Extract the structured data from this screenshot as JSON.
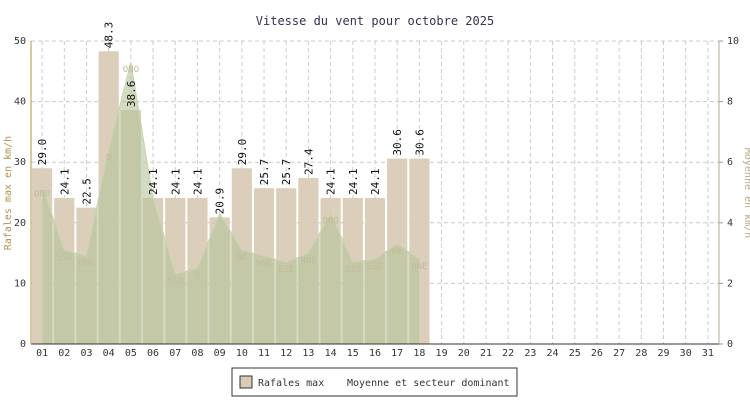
{
  "chart_data": {
    "type": "bar",
    "title": "Vitesse du vent pour octobre 2025",
    "ylabel": "Rafales max en km/h",
    "y2label": "Moyenne en km/h",
    "categories": [
      "01",
      "02",
      "03",
      "04",
      "05",
      "06",
      "07",
      "08",
      "09",
      "10",
      "11",
      "12",
      "13",
      "14",
      "15",
      "16",
      "17",
      "18",
      "19",
      "20",
      "21",
      "22",
      "23",
      "24",
      "25",
      "26",
      "27",
      "28",
      "29",
      "30",
      "31"
    ],
    "ylim": [
      0,
      50
    ],
    "yticks": [
      0,
      10,
      20,
      30,
      40,
      50
    ],
    "y2lim": [
      0,
      10
    ],
    "y2ticks": [
      0,
      2,
      4,
      6,
      8,
      10
    ],
    "grid": true,
    "series": [
      {
        "name": "Rafales max",
        "color": "#d9cbb6",
        "values": [
          29.0,
          24.1,
          22.5,
          48.3,
          38.6,
          24.1,
          24.1,
          24.1,
          20.9,
          29.0,
          25.7,
          25.7,
          27.4,
          24.1,
          24.1,
          24.1,
          30.6,
          30.6,
          null,
          null,
          null,
          null,
          null,
          null,
          null,
          null,
          null,
          null,
          null,
          null,
          null
        ],
        "value_labels": [
          "29.0",
          "24.1",
          "22.5",
          "48.3",
          "38.6",
          "24.1",
          "24.1",
          "24.1",
          "20.9",
          "29.0",
          "25.7",
          "25.7",
          "27.4",
          "24.1",
          "24.1",
          "24.1",
          "30.6",
          "30.6",
          null,
          null,
          null,
          null,
          null,
          null,
          null,
          null,
          null,
          null,
          null,
          null,
          null
        ]
      },
      {
        "name": "Moyenne et secteur dominant",
        "color": "#b5c49a",
        "axis": "y2",
        "type": "area",
        "values": [
          5.2,
          3.1,
          2.9,
          6.4,
          9.3,
          4.8,
          2.3,
          2.5,
          4.3,
          3.1,
          2.9,
          2.7,
          3.0,
          4.3,
          2.7,
          2.8,
          3.3,
          2.8,
          null,
          null,
          null,
          null,
          null,
          null,
          null,
          null,
          null,
          null,
          null,
          null,
          null
        ],
        "directions": [
          "ONO",
          "SSO",
          "ONO",
          "O",
          "ONO",
          null,
          "SSO",
          "S",
          null,
          "NO",
          "NNE",
          "ESE",
          "NNE",
          "ONO",
          "OSO",
          "ESE",
          "NE",
          "NNE",
          null,
          null,
          null,
          null,
          null,
          null,
          null,
          null,
          null,
          null,
          null,
          null,
          null
        ]
      }
    ]
  }
}
